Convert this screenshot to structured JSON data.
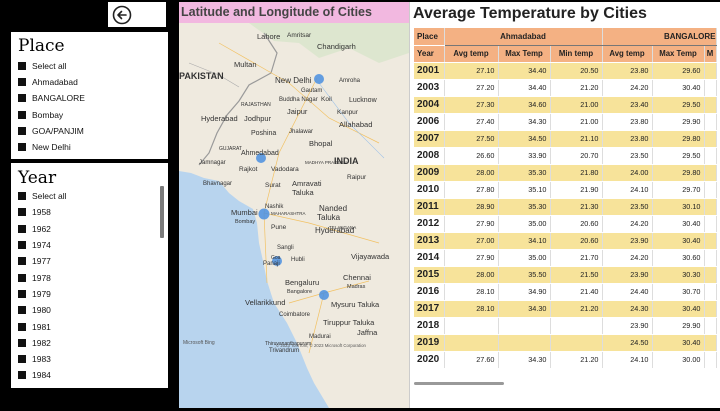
{
  "navigation": {
    "back_icon": "back-arrow-icon"
  },
  "place_slicer": {
    "title": "Place",
    "items": [
      {
        "label": "Select all"
      },
      {
        "label": "Ahmadabad"
      },
      {
        "label": "BANGALORE"
      },
      {
        "label": "Bombay"
      },
      {
        "label": "GOA/PANJIM"
      },
      {
        "label": "New Delhi"
      }
    ]
  },
  "year_slicer": {
    "title": "Year",
    "items": [
      {
        "label": "Select all"
      },
      {
        "label": "1958"
      },
      {
        "label": "1962"
      },
      {
        "label": "1974"
      },
      {
        "label": "1977"
      },
      {
        "label": "1978"
      },
      {
        "label": "1979"
      },
      {
        "label": "1980"
      },
      {
        "label": "1981"
      },
      {
        "label": "1982"
      },
      {
        "label": "1983"
      },
      {
        "label": "1984"
      }
    ]
  },
  "map": {
    "title": "Latitude and Longitude of Cities",
    "labels": {
      "lahore": "Lahore",
      "amritsar": "Amritsar",
      "chandigarh": "Chandigarh",
      "multan": "Multan",
      "pakistan": "PAKISTAN",
      "new_delhi": "New Delhi",
      "amroha": "Amroha",
      "gautam": "Gautam",
      "buddha_nagar": "Buddha Nagar",
      "koil": "Koil",
      "lucknow": "Lucknow",
      "rajasthan": "RAJASTHAN",
      "jaipur": "Jaipur",
      "kanpur": "Kanpur",
      "hyderabad_pk": "Hyderabad",
      "jodhpur": "Jodhpur",
      "allahabad": "Allahabad",
      "poshina": "Poshina",
      "jhalawar": "Jhalawar",
      "bhopal": "Bhopal",
      "gujarat": "GUJARAT",
      "ahmedabad": "Ahmedabad",
      "jamnagar": "Jamnagar",
      "rajkot": "Rajkot",
      "vadodara": "Vadodara",
      "india": "INDIA",
      "madhya": "MADHYA PRADESH",
      "bhavnagar": "Bhavnagar",
      "surat": "Surat",
      "amravati": "Amravati",
      "taluka": "Taluka",
      "raipur": "Raipur",
      "nashik": "Nashik",
      "maharashtra": "MAHARASHTRA",
      "nanded": "Nanded",
      "mumbai": "Mumbai",
      "bombay": "Bombay",
      "pune": "Pune",
      "telangana": "TELANGANA",
      "hyderabad": "Hyderabad",
      "sangli": "Sangli",
      "vijayawada": "Vijayawada",
      "panaji": "Panaji",
      "goa": "Goa",
      "hubli": "Hubli",
      "bengaluru": "Bengaluru",
      "bangalore": "Bangalore",
      "chennai": "Chennai",
      "madras": "Madras",
      "vellarikkund": "Vellarikkund",
      "mysuru": "Mysuru Taluka",
      "coimbatore": "Coimbatore",
      "tiruppur": "Tiruppur Taluka",
      "jaffna": "Jaffna",
      "madurai": "Madurai",
      "thiruvananthapuram": "Thiruvananthapuram",
      "trivandrum": "Trivandrum"
    },
    "attribution_logo": "Microsoft Bing",
    "copyright": "© 2023 TomTom, © 2023 Microsoft Corporation"
  },
  "table": {
    "title": "Average Temperature by Cities",
    "place_header": "Place",
    "year_header": "Year",
    "groups": [
      {
        "name": "Ahmadabad"
      },
      {
        "name": "BANGALORE"
      }
    ],
    "columns": [
      "Avg temp",
      "Max Temp",
      "Min temp",
      "Avg temp",
      "Max Temp",
      "M"
    ],
    "rows": [
      {
        "year": "2001",
        "a_avg": "27.10",
        "a_max": "34.40",
        "a_min": "20.50",
        "b_avg": "23.80",
        "b_max": "29.60"
      },
      {
        "year": "2003",
        "a_avg": "27.20",
        "a_max": "34.40",
        "a_min": "21.20",
        "b_avg": "24.20",
        "b_max": "30.40"
      },
      {
        "year": "2004",
        "a_avg": "27.30",
        "a_max": "34.60",
        "a_min": "21.00",
        "b_avg": "23.40",
        "b_max": "29.50"
      },
      {
        "year": "2006",
        "a_avg": "27.40",
        "a_max": "34.30",
        "a_min": "21.00",
        "b_avg": "23.80",
        "b_max": "29.90"
      },
      {
        "year": "2007",
        "a_avg": "27.50",
        "a_max": "34.50",
        "a_min": "21.10",
        "b_avg": "23.80",
        "b_max": "29.80"
      },
      {
        "year": "2008",
        "a_avg": "26.60",
        "a_max": "33.90",
        "a_min": "20.70",
        "b_avg": "23.50",
        "b_max": "29.50"
      },
      {
        "year": "2009",
        "a_avg": "28.00",
        "a_max": "35.30",
        "a_min": "21.80",
        "b_avg": "24.00",
        "b_max": "29.80"
      },
      {
        "year": "2010",
        "a_avg": "27.80",
        "a_max": "35.10",
        "a_min": "21.90",
        "b_avg": "24.10",
        "b_max": "29.70"
      },
      {
        "year": "2011",
        "a_avg": "28.90",
        "a_max": "35.30",
        "a_min": "21.30",
        "b_avg": "23.50",
        "b_max": "30.10"
      },
      {
        "year": "2012",
        "a_avg": "27.90",
        "a_max": "35.00",
        "a_min": "20.60",
        "b_avg": "24.20",
        "b_max": "30.40"
      },
      {
        "year": "2013",
        "a_avg": "27.00",
        "a_max": "34.10",
        "a_min": "20.60",
        "b_avg": "23.90",
        "b_max": "30.40"
      },
      {
        "year": "2014",
        "a_avg": "27.90",
        "a_max": "35.00",
        "a_min": "21.70",
        "b_avg": "24.20",
        "b_max": "30.60"
      },
      {
        "year": "2015",
        "a_avg": "28.00",
        "a_max": "35.50",
        "a_min": "21.50",
        "b_avg": "23.90",
        "b_max": "30.30"
      },
      {
        "year": "2016",
        "a_avg": "28.10",
        "a_max": "34.90",
        "a_min": "21.40",
        "b_avg": "24.40",
        "b_max": "30.70"
      },
      {
        "year": "2017",
        "a_avg": "28.10",
        "a_max": "34.30",
        "a_min": "21.20",
        "b_avg": "24.30",
        "b_max": "30.40"
      },
      {
        "year": "2018",
        "a_avg": "",
        "a_max": "",
        "a_min": "",
        "b_avg": "23.90",
        "b_max": "29.90"
      },
      {
        "year": "2019",
        "a_avg": "",
        "a_max": "",
        "a_min": "",
        "b_avg": "24.50",
        "b_max": "30.40"
      },
      {
        "year": "2020",
        "a_avg": "27.60",
        "a_max": "34.30",
        "a_min": "21.20",
        "b_avg": "24.10",
        "b_max": "30.00"
      }
    ]
  },
  "colors": {
    "header_orange": "#f4b183",
    "row_yellow": "#f7e39a",
    "map_title_pink": "#f2b8e0",
    "bubble_blue": "#4a8fe0"
  }
}
